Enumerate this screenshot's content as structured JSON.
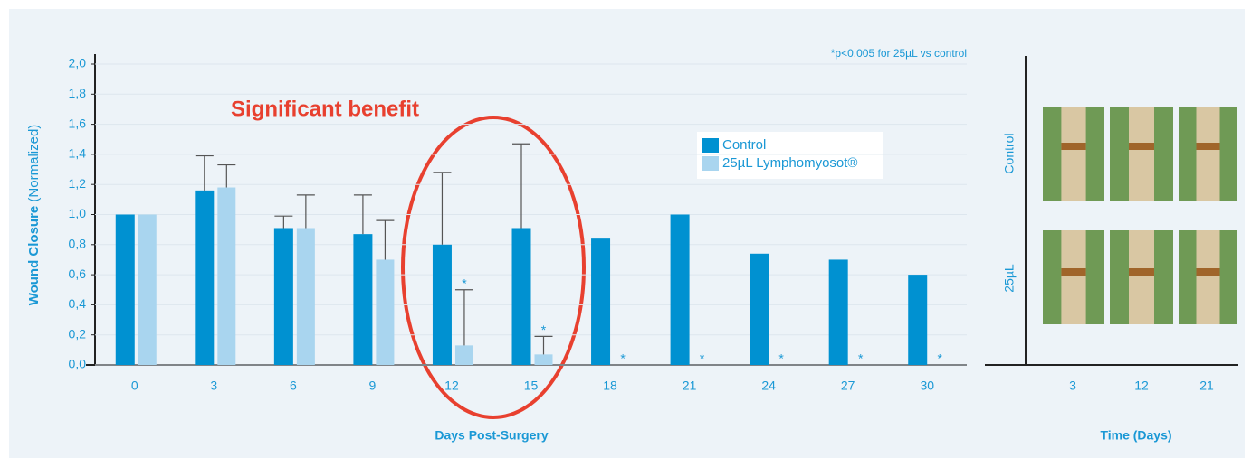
{
  "chart_data": {
    "type": "bar",
    "annotation_note": "*p<0.005 for 25µL vs control",
    "y_label_bold": "Wound Closure",
    "y_label_normal": "(Normalized)",
    "x_label": "Days Post-Surgery",
    "callout": "Significant benefit",
    "categories": [
      "0",
      "3",
      "6",
      "9",
      "12",
      "15",
      "18",
      "21",
      "24",
      "27",
      "30"
    ],
    "series": [
      {
        "name": "Control",
        "color": "#0091d1",
        "values": [
          1.0,
          1.16,
          0.91,
          0.87,
          0.8,
          0.91,
          0.84,
          1.0,
          0.74,
          0.7,
          0.6
        ],
        "errors": [
          null,
          0.23,
          0.08,
          0.26,
          0.48,
          0.56,
          null,
          null,
          null,
          null,
          null
        ]
      },
      {
        "name": "25µL Lymphomyosot®",
        "color": "#a9d5ef",
        "values": [
          1.0,
          1.18,
          0.91,
          0.7,
          0.13,
          0.07,
          0,
          0,
          0,
          0,
          0
        ],
        "errors": [
          null,
          0.15,
          0.22,
          0.26,
          0.37,
          0.12,
          null,
          null,
          null,
          null,
          null
        ]
      }
    ],
    "significance_markers": [
      null,
      null,
      null,
      null,
      "*",
      "*",
      "*",
      "*",
      "*",
      "*",
      "*"
    ],
    "ylim": [
      0,
      2
    ],
    "yticks": [
      {
        "value": 0,
        "label": "0,0"
      },
      {
        "value": 0.2,
        "label": "0,2"
      },
      {
        "value": 0.4,
        "label": "0,4"
      },
      {
        "value": 0.6,
        "label": "0,6"
      },
      {
        "value": 0.8,
        "label": "0,8"
      },
      {
        "value": 1.0,
        "label": "1,0"
      },
      {
        "value": 1.2,
        "label": "1,2"
      },
      {
        "value": 1.4,
        "label": "1,4"
      },
      {
        "value": 1.6,
        "label": "1,6"
      },
      {
        "value": 1.8,
        "label": "1,8"
      },
      {
        "value": 2.0,
        "label": "2,0"
      }
    ],
    "grid": true,
    "legend": "upper right"
  },
  "photo_panel": {
    "row_labels": [
      "Control",
      "25µL"
    ],
    "column_labels": [
      "3",
      "12",
      "21"
    ],
    "x_label": "Time (Days)"
  }
}
